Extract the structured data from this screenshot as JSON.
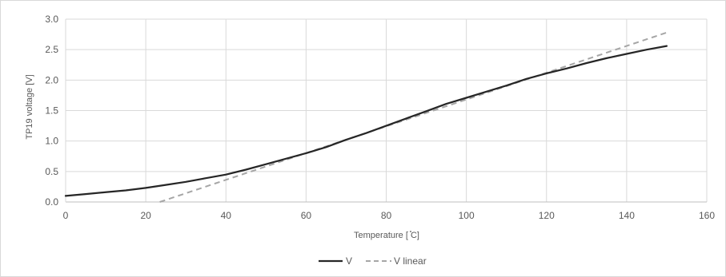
{
  "chart_data": {
    "type": "line",
    "title": "",
    "xlabel": "Temperature [ ̊C]",
    "ylabel": "TP19 voltage [V]",
    "xlim": [
      0,
      160
    ],
    "ylim": [
      0,
      3.0
    ],
    "x_ticks": [
      0,
      20,
      40,
      60,
      80,
      100,
      120,
      140,
      160
    ],
    "y_ticks": [
      0.0,
      0.5,
      1.0,
      1.5,
      2.0,
      2.5,
      3.0
    ],
    "x_tick_labels": [
      "0",
      "20",
      "40",
      "60",
      "80",
      "100",
      "120",
      "140",
      "160"
    ],
    "y_tick_labels": [
      "0.0",
      "0.5",
      "1.0",
      "1.5",
      "2.0",
      "2.5",
      "3.0"
    ],
    "grid": true,
    "legend_position": "bottom",
    "series": [
      {
        "name": "V",
        "style": "solid",
        "color": "#262626",
        "x": [
          0,
          5,
          10,
          15,
          20,
          25,
          30,
          35,
          40,
          45,
          50,
          55,
          60,
          65,
          70,
          75,
          80,
          85,
          90,
          95,
          100,
          105,
          110,
          115,
          120,
          125,
          130,
          135,
          140,
          145,
          150
        ],
        "y": [
          0.1,
          0.13,
          0.16,
          0.19,
          0.23,
          0.28,
          0.33,
          0.39,
          0.45,
          0.53,
          0.62,
          0.71,
          0.8,
          0.9,
          1.02,
          1.13,
          1.25,
          1.37,
          1.49,
          1.61,
          1.71,
          1.81,
          1.91,
          2.02,
          2.11,
          2.19,
          2.28,
          2.36,
          2.43,
          2.5,
          2.56
        ]
      },
      {
        "name": "V linear",
        "style": "dashed",
        "color": "#a6a6a6",
        "x": [
          23.5,
          150
        ],
        "y": [
          0.0,
          2.78
        ]
      }
    ]
  }
}
